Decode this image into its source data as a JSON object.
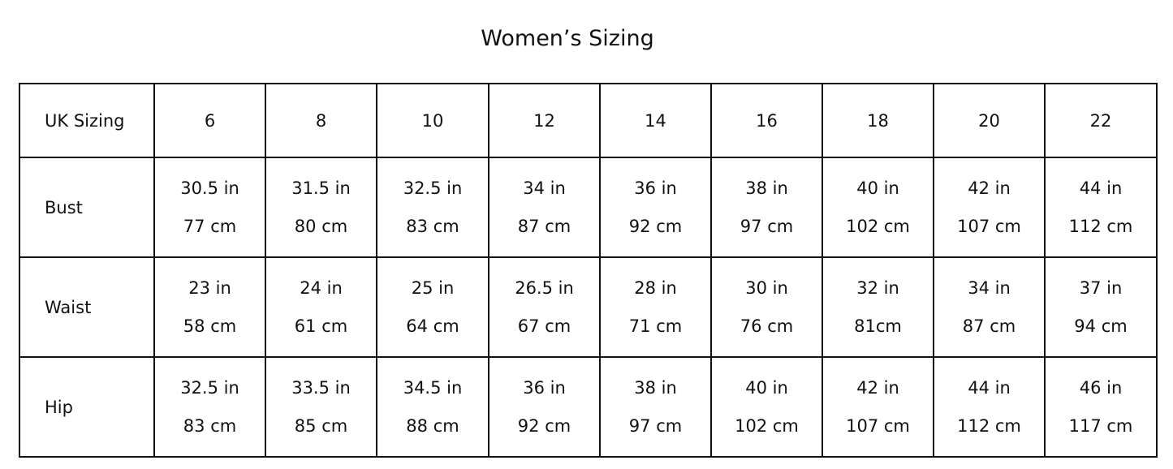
{
  "title": "Women’s Sizing",
  "header": {
    "label": "UK Sizing",
    "sizes": [
      "6",
      "8",
      "10",
      "12",
      "14",
      "16",
      "18",
      "20",
      "22"
    ]
  },
  "rows": [
    {
      "label": "Bust",
      "values": [
        [
          "30.5 in",
          "77 cm"
        ],
        [
          "31.5 in",
          "80 cm"
        ],
        [
          "32.5 in",
          "83 cm"
        ],
        [
          "34 in",
          "87 cm"
        ],
        [
          "36 in",
          "92 cm"
        ],
        [
          "38 in",
          "97 cm"
        ],
        [
          "40 in",
          "102 cm"
        ],
        [
          "42 in",
          "107 cm"
        ],
        [
          "44 in",
          "112 cm"
        ]
      ]
    },
    {
      "label": "Waist",
      "values": [
        [
          "23 in",
          "58 cm"
        ],
        [
          "24 in",
          "61 cm"
        ],
        [
          "25 in",
          "64 cm"
        ],
        [
          "26.5 in",
          "67 cm"
        ],
        [
          "28 in",
          "71 cm"
        ],
        [
          "30 in",
          "76 cm"
        ],
        [
          "32 in",
          "81cm"
        ],
        [
          "34 in",
          "87 cm"
        ],
        [
          "37 in",
          "94 cm"
        ]
      ]
    },
    {
      "label": "Hip",
      "values": [
        [
          "32.5 in",
          "83 cm"
        ],
        [
          "33.5 in",
          "85 cm"
        ],
        [
          "34.5 in",
          "88 cm"
        ],
        [
          "36 in",
          "92 cm"
        ],
        [
          "38 in",
          "97 cm"
        ],
        [
          "40 in",
          "102 cm"
        ],
        [
          "42 in",
          "107 cm"
        ],
        [
          "44 in",
          "112 cm"
        ],
        [
          "46 in",
          "117 cm"
        ]
      ]
    }
  ]
}
